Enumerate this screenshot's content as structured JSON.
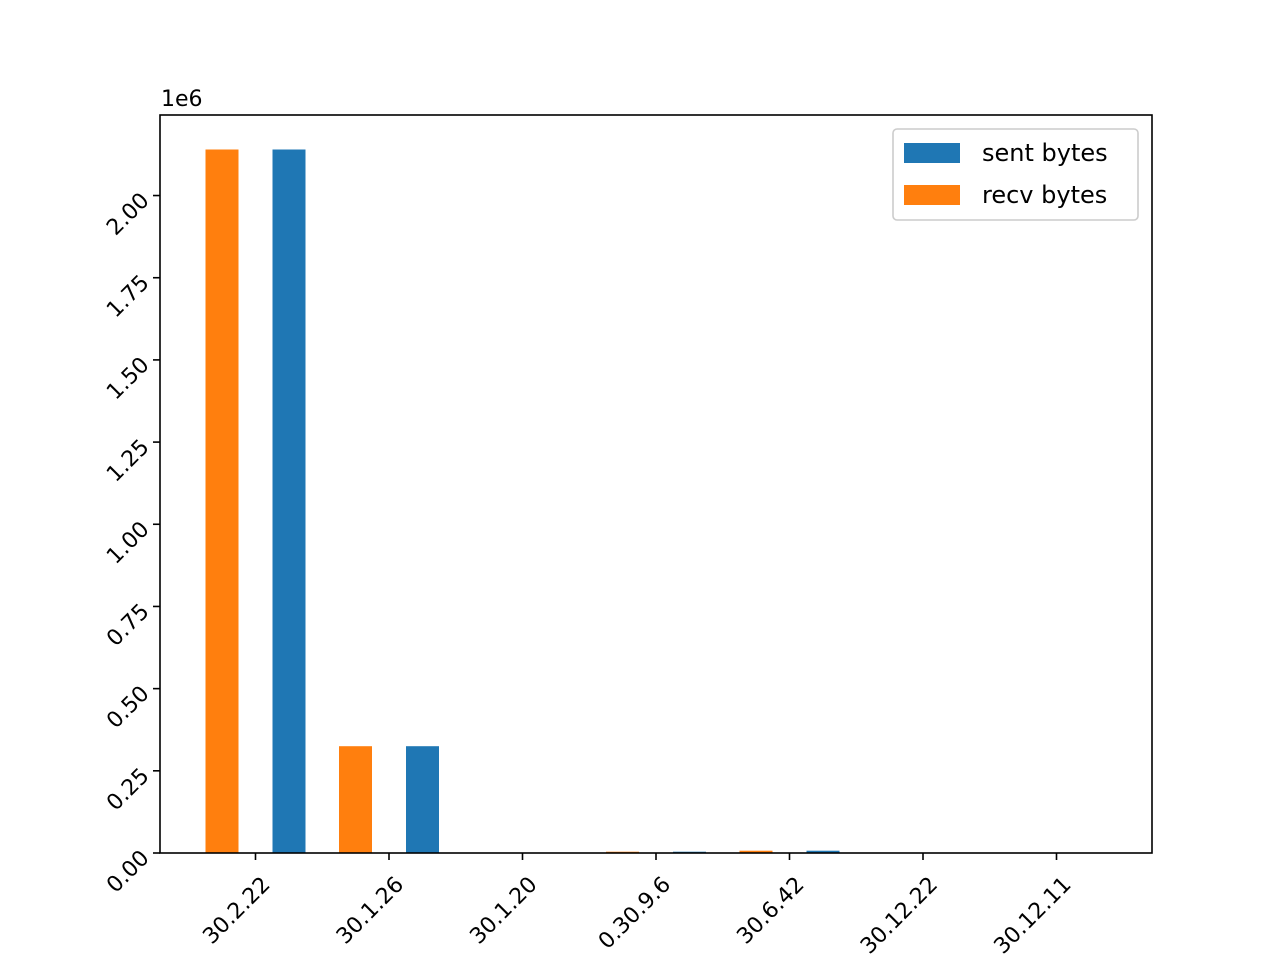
{
  "chart_data": {
    "type": "bar",
    "categories": [
      "30.2.22",
      "30.1.26",
      "30.1.20",
      "0.30.9.6",
      "30.6.42",
      "30.12.22",
      "30.12.11"
    ],
    "series": [
      {
        "name": "sent bytes",
        "color": "#1f77b4",
        "values": [
          2140000,
          325000,
          0,
          4000,
          7000,
          0,
          0
        ]
      },
      {
        "name": "recv bytes",
        "color": "#ff7f0e",
        "values": [
          2140000,
          325000,
          0,
          4000,
          7000,
          0,
          0
        ]
      }
    ],
    "ylim": [
      0,
      2245000
    ],
    "yticks": [
      0,
      250000,
      500000,
      750000,
      1000000,
      1250000,
      1500000,
      1750000,
      2000000
    ],
    "ytick_labels": [
      "0.00",
      "0.25",
      "0.50",
      "0.75",
      "1.00",
      "1.25",
      "1.50",
      "1.75",
      "2.00"
    ],
    "y_offset_label": "1e6",
    "legend_position": "upper right",
    "grid": false,
    "xlabel": "",
    "ylabel": "",
    "title": ""
  }
}
